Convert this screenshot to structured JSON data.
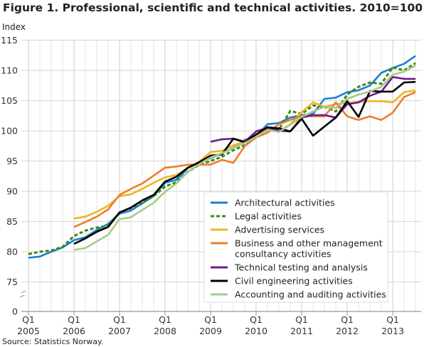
{
  "chart_data": {
    "type": "line",
    "title": "Figure 1. Professional, scientific and technical activities. 2010=100",
    "ylabel": "Index",
    "xlabel": "",
    "source": "Source: Statistics Norway.",
    "ylim": [
      75,
      115
    ],
    "y_axis_break": true,
    "y_ticks": [
      "0",
      "75",
      "80",
      "85",
      "90",
      "95",
      "100",
      "105",
      "110",
      "115"
    ],
    "x_ticks": [
      [
        "Q1",
        "2005"
      ],
      [
        "Q1",
        "2006"
      ],
      [
        "Q1",
        "2007"
      ],
      [
        "Q1",
        "2008"
      ],
      [
        "Q1",
        "2009"
      ],
      [
        "Q1",
        "2010"
      ],
      [
        "Q1",
        "2011"
      ],
      [
        "Q1",
        "2012"
      ],
      [
        "Q1",
        "2013"
      ]
    ],
    "x_start": "2005Q1",
    "x_end": "2013Q3",
    "grid": true,
    "legend_placement": "bottom-right",
    "series": [
      {
        "name": "Architectural activities",
        "color": "#1c7fd1",
        "dash": false,
        "values": [
          79.0,
          79.2,
          80.0,
          80.7,
          81.9,
          82.4,
          83.6,
          84.6,
          86.3,
          86.8,
          88.0,
          89.2,
          91.4,
          91.9,
          93.8,
          94.8,
          95.5,
          96.3,
          97.2,
          98.5,
          99.1,
          101.1,
          101.3,
          102.2,
          102.6,
          102.8,
          105.3,
          105.5,
          106.4,
          106.7,
          107.5,
          109.6,
          110.4,
          111.1,
          112.4
        ]
      },
      {
        "name": "Legal activities",
        "color": "#3a8a14",
        "dash": true,
        "values": [
          79.6,
          80.0,
          80.2,
          80.8,
          82.6,
          83.5,
          84.0,
          84.3,
          86.5,
          87.2,
          88.2,
          89.2,
          90.8,
          91.5,
          93.2,
          94.4,
          95.0,
          95.7,
          96.8,
          97.6,
          99.0,
          100.6,
          100.2,
          103.3,
          102.8,
          104.2,
          104.0,
          103.2,
          106.0,
          107.3,
          108.0,
          107.8,
          110.5,
          110.0,
          111.2
        ]
      },
      {
        "name": "Advertising services",
        "color": "#f1b423",
        "dash": false,
        "values": [
          null,
          null,
          null,
          null,
          85.5,
          85.8,
          86.6,
          87.6,
          89.2,
          89.5,
          90.4,
          91.4,
          92.3,
          92.7,
          93.8,
          94.9,
          96.5,
          96.7,
          97.6,
          98.2,
          99.3,
          100.1,
          99.9,
          101.1,
          103.1,
          104.7,
          104.0,
          104.4,
          104.6,
          104.8,
          104.9,
          104.9,
          104.7,
          106.4,
          106.7
        ]
      },
      {
        "name": "Business and other management consultancy activities",
        "color": "#ee7d2d",
        "dash": false,
        "values": [
          null,
          null,
          null,
          null,
          84.1,
          84.9,
          85.8,
          87.0,
          89.4,
          90.4,
          91.3,
          92.6,
          93.9,
          94.1,
          94.4,
          94.4,
          94.4,
          95.2,
          94.7,
          97.5,
          98.9,
          99.7,
          101.1,
          101.8,
          102.5,
          102.4,
          102.4,
          104.7,
          102.4,
          101.8,
          102.4,
          101.8,
          103.0,
          105.6,
          106.4
        ]
      },
      {
        "name": "Technical testing and analysis",
        "color": "#6d1b8c",
        "dash": false,
        "values": [
          null,
          null,
          null,
          null,
          null,
          null,
          null,
          null,
          null,
          null,
          null,
          null,
          null,
          null,
          null,
          null,
          98.2,
          98.6,
          98.7,
          98.2,
          99.9,
          100.5,
          100.0,
          99.9,
          102.2,
          102.6,
          102.6,
          102.2,
          104.4,
          104.7,
          105.8,
          106.5,
          108.9,
          108.6,
          108.6
        ]
      },
      {
        "name": "Civil engineering activities",
        "color": "#000000",
        "dash": false,
        "values": [
          null,
          null,
          null,
          null,
          81.3,
          82.2,
          83.3,
          84.1,
          86.5,
          87.3,
          88.5,
          89.4,
          91.6,
          92.4,
          93.9,
          94.8,
          95.9,
          96.1,
          98.7,
          98.1,
          99.4,
          100.6,
          100.4,
          99.9,
          102.0,
          99.2,
          100.7,
          102.2,
          104.9,
          102.3,
          106.6,
          106.5,
          106.5,
          108.0,
          108.1
        ]
      },
      {
        "name": "Accounting and auditing activities",
        "color": "#a5cb8b",
        "dash": false,
        "values": [
          null,
          null,
          null,
          null,
          80.3,
          80.6,
          81.7,
          82.8,
          85.4,
          85.7,
          86.9,
          88.1,
          89.9,
          91.3,
          93.2,
          94.5,
          95.6,
          96.3,
          97.2,
          98.0,
          99.0,
          100.2,
          99.8,
          101.0,
          102.3,
          103.2,
          104.0,
          103.8,
          105.3,
          106.0,
          106.5,
          107.3,
          109.3,
          109.8,
          110.8
        ]
      }
    ]
  }
}
